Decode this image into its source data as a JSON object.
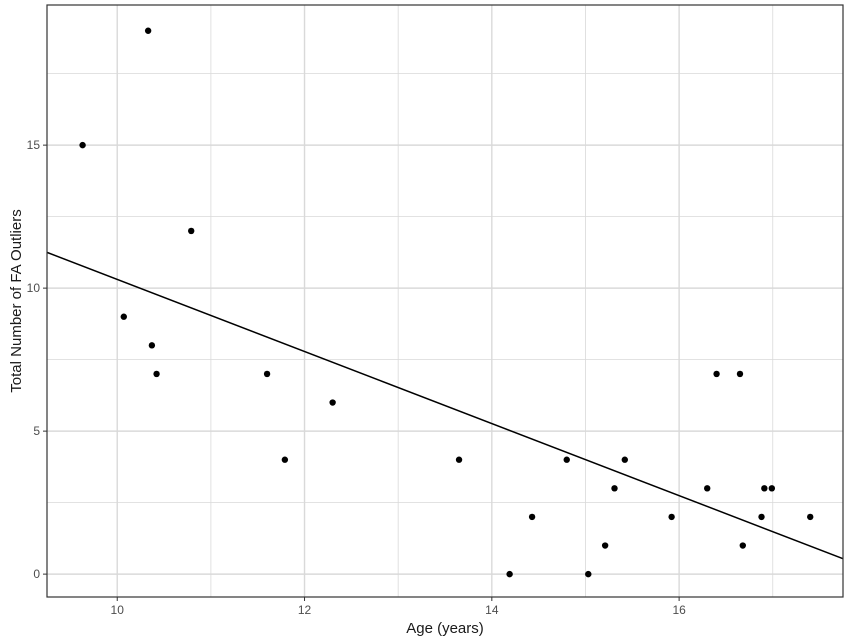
{
  "chart_data": {
    "type": "scatter",
    "title": "",
    "xlabel": "Age (years)",
    "ylabel": "Total Number of FA Outliers",
    "xlim": [
      9.25,
      17.75
    ],
    "ylim": [
      -0.8,
      19.9
    ],
    "x_ticks": [
      10,
      12,
      14,
      16
    ],
    "x_tick_labels": [
      "10",
      "12",
      "14",
      "16"
    ],
    "x_minor_ticks": [
      11,
      13,
      15,
      17
    ],
    "y_ticks": [
      0,
      5,
      10,
      15
    ],
    "y_tick_labels": [
      "0",
      "5",
      "10",
      "15"
    ],
    "y_minor_ticks": [
      2.5,
      7.5,
      12.5,
      17.5
    ],
    "grid": true,
    "legend": "none",
    "colors": {
      "point": "#000000",
      "line": "#000000",
      "grid": "#d9d9d9",
      "border": "#333333"
    },
    "points": [
      {
        "x": 9.63,
        "y": 15
      },
      {
        "x": 10.07,
        "y": 9
      },
      {
        "x": 10.33,
        "y": 19
      },
      {
        "x": 10.37,
        "y": 8
      },
      {
        "x": 10.42,
        "y": 7
      },
      {
        "x": 10.79,
        "y": 12
      },
      {
        "x": 11.6,
        "y": 7
      },
      {
        "x": 11.79,
        "y": 4
      },
      {
        "x": 12.3,
        "y": 6
      },
      {
        "x": 13.65,
        "y": 4
      },
      {
        "x": 14.19,
        "y": 0
      },
      {
        "x": 14.43,
        "y": 2
      },
      {
        "x": 14.8,
        "y": 4
      },
      {
        "x": 15.03,
        "y": 0
      },
      {
        "x": 15.21,
        "y": 1
      },
      {
        "x": 15.31,
        "y": 3
      },
      {
        "x": 15.42,
        "y": 4
      },
      {
        "x": 15.92,
        "y": 2
      },
      {
        "x": 16.3,
        "y": 3
      },
      {
        "x": 16.4,
        "y": 7
      },
      {
        "x": 16.65,
        "y": 7
      },
      {
        "x": 16.68,
        "y": 1
      },
      {
        "x": 16.88,
        "y": 2
      },
      {
        "x": 16.91,
        "y": 3
      },
      {
        "x": 16.99,
        "y": 3
      },
      {
        "x": 17.4,
        "y": 2
      }
    ],
    "trend_line": {
      "x": [
        9.25,
        17.75
      ],
      "y": [
        11.25,
        0.54
      ]
    }
  }
}
